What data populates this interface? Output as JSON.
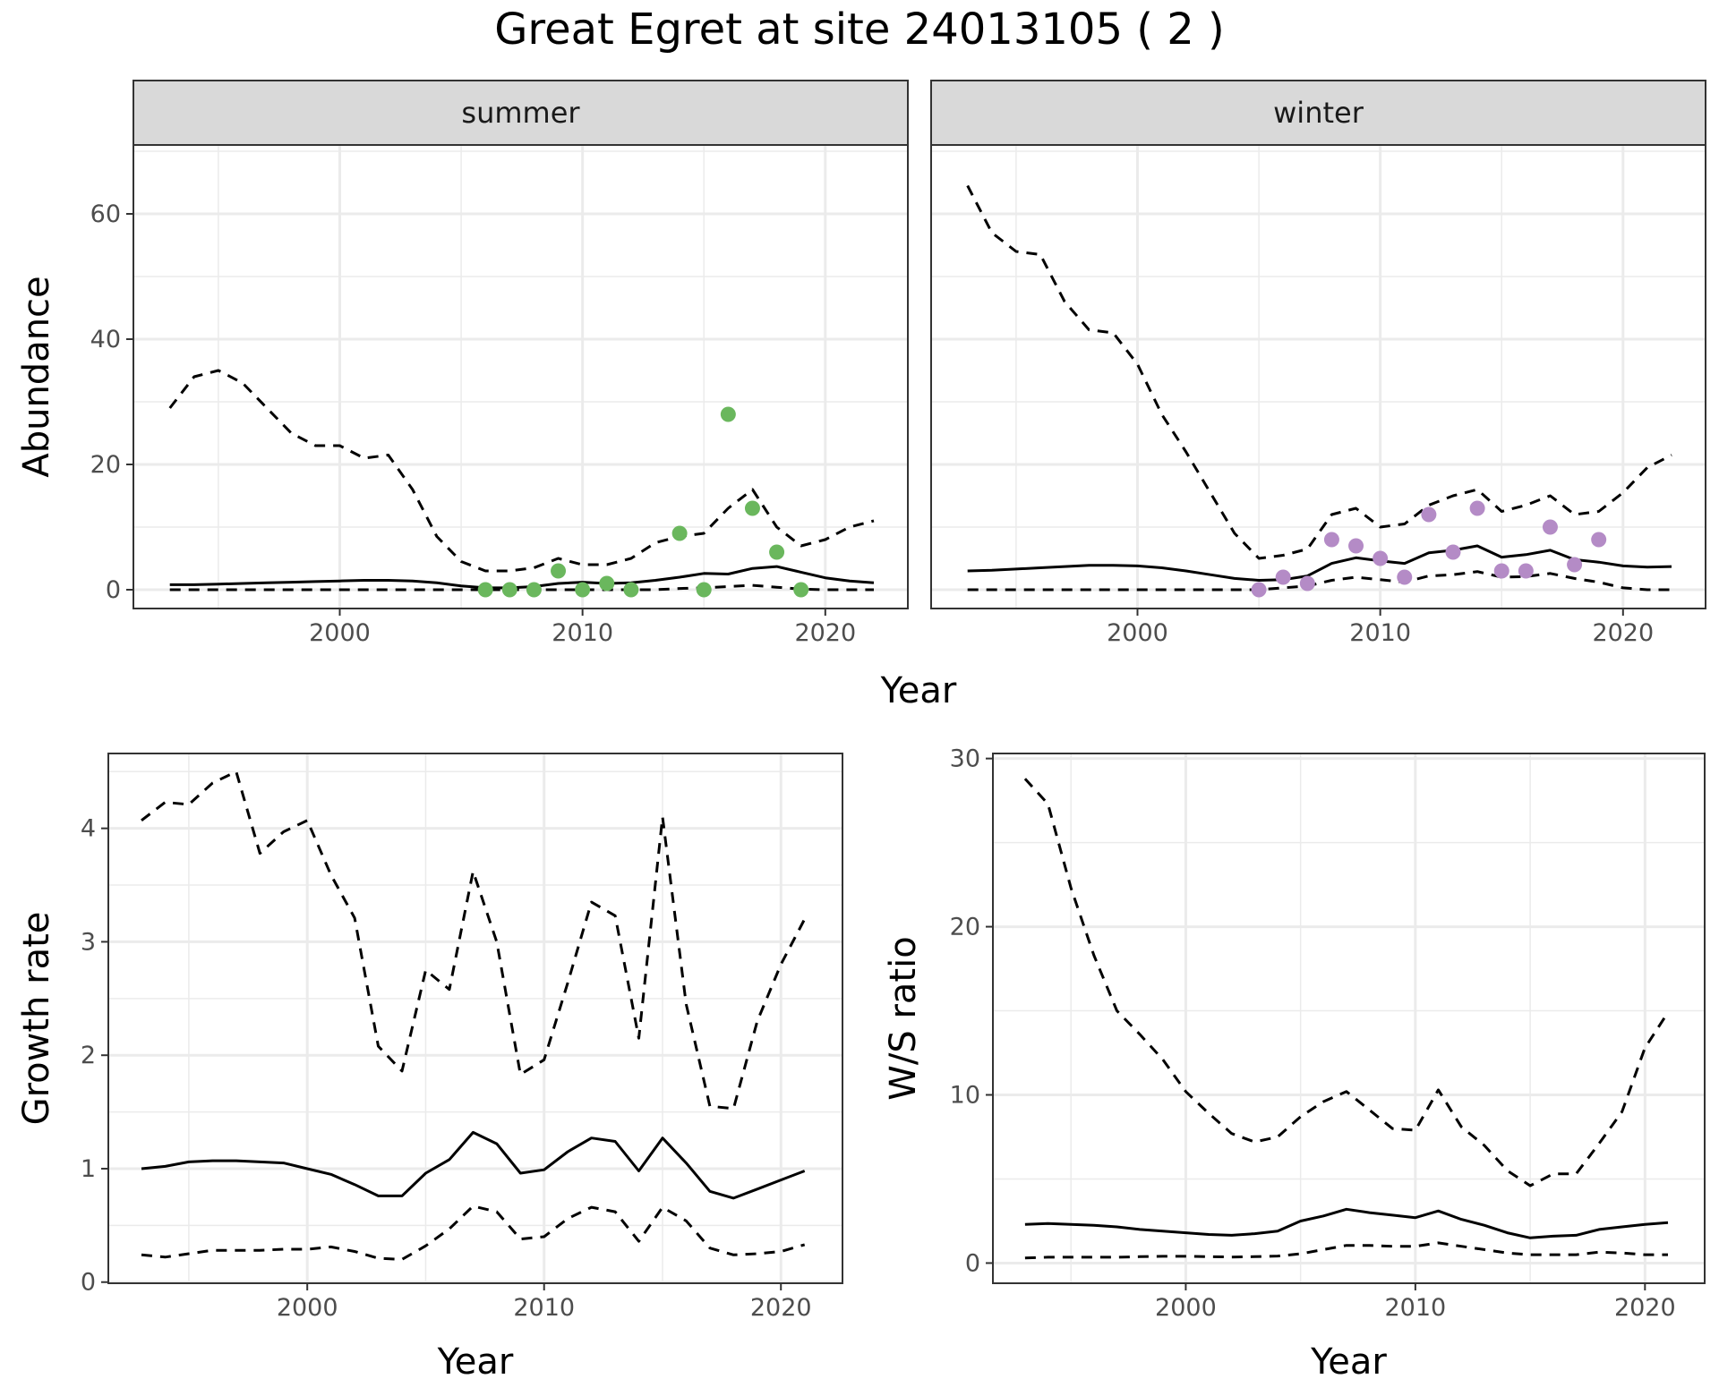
{
  "title": "Great Egret at site 24013105 ( 2 )",
  "colors": {
    "summer_points": "#6ab75d",
    "winter_points": "#b48bc6",
    "lines": "#000000",
    "strip_bg": "#d9d9d9",
    "grid": "#ebebeb"
  },
  "chart_data": [
    {
      "type": "line",
      "facet": "summer",
      "ylabel": "Abundance",
      "xlabel": "Year",
      "xlim": [
        1991.5,
        2023.4
      ],
      "ylim": [
        -3,
        71
      ],
      "xticks": [
        2000,
        2010,
        2020
      ],
      "yticks": [
        0,
        20,
        40,
        60
      ],
      "grid": true,
      "x": [
        1993,
        1994,
        1995,
        1996,
        1997,
        1998,
        1999,
        2000,
        2001,
        2002,
        2003,
        2004,
        2005,
        2006,
        2007,
        2008,
        2009,
        2010,
        2011,
        2012,
        2013,
        2014,
        2015,
        2016,
        2017,
        2018,
        2019,
        2020,
        2021,
        2022
      ],
      "series": [
        {
          "role": "estimate",
          "style": "solid",
          "values": [
            0.8,
            0.8,
            0.9,
            1.0,
            1.1,
            1.2,
            1.3,
            1.4,
            1.5,
            1.5,
            1.4,
            1.1,
            0.6,
            0.3,
            0.3,
            0.5,
            1.0,
            1.2,
            1.0,
            1.1,
            1.5,
            2.0,
            2.6,
            2.5,
            3.4,
            3.7,
            2.8,
            1.9,
            1.4,
            1.1
          ]
        },
        {
          "role": "upper",
          "style": "dashed",
          "values": [
            29,
            34,
            35,
            33,
            29,
            25,
            23,
            23,
            21,
            21.5,
            16,
            8.5,
            4.5,
            3,
            3,
            3.5,
            5,
            4,
            4,
            5,
            7.5,
            8.5,
            9,
            13,
            16,
            10,
            7,
            8,
            10,
            11
          ]
        },
        {
          "role": "lower",
          "style": "dashed",
          "values": [
            0,
            0,
            0,
            0,
            0,
            0,
            0,
            0,
            0,
            0,
            0,
            0,
            0,
            0,
            0,
            0,
            0,
            0,
            0,
            0,
            0,
            0.2,
            0.3,
            0.5,
            0.7,
            0.4,
            0.1,
            0,
            0,
            0
          ]
        }
      ],
      "points": {
        "x": [
          2006,
          2007,
          2008,
          2009,
          2010,
          2011,
          2012,
          2014,
          2015,
          2016,
          2017,
          2018,
          2019
        ],
        "y": [
          0,
          0,
          0,
          3,
          0,
          1,
          0,
          9,
          0,
          28,
          13,
          6,
          0
        ]
      }
    },
    {
      "type": "line",
      "facet": "winter",
      "ylabel": "",
      "xlabel": "Year",
      "xlim": [
        1991.5,
        2023.4
      ],
      "ylim": [
        -3,
        71
      ],
      "xticks": [
        2000,
        2010,
        2020
      ],
      "yticks": [
        0,
        20,
        40,
        60
      ],
      "grid": true,
      "x": [
        1993,
        1994,
        1995,
        1996,
        1997,
        1998,
        1999,
        2000,
        2001,
        2002,
        2003,
        2004,
        2005,
        2006,
        2007,
        2008,
        2009,
        2010,
        2011,
        2012,
        2013,
        2014,
        2015,
        2016,
        2017,
        2018,
        2019,
        2020,
        2021,
        2022
      ],
      "series": [
        {
          "role": "estimate",
          "style": "solid",
          "values": [
            3.0,
            3.1,
            3.3,
            3.5,
            3.7,
            3.9,
            3.9,
            3.8,
            3.5,
            3.0,
            2.4,
            1.8,
            1.5,
            1.6,
            2.2,
            4.2,
            5.1,
            4.6,
            4.2,
            5.9,
            6.3,
            7.0,
            5.2,
            5.6,
            6.3,
            4.8,
            4.4,
            3.8,
            3.6,
            3.7
          ]
        },
        {
          "role": "upper",
          "style": "dashed",
          "values": [
            64.5,
            57,
            54,
            53.5,
            46,
            41.5,
            41,
            36,
            28,
            22,
            15.5,
            9,
            5,
            5.5,
            6.5,
            12,
            13,
            10,
            10.5,
            13.5,
            15,
            16,
            12.5,
            13.5,
            15,
            12,
            12.5,
            15.5,
            19.5,
            21.5
          ]
        },
        {
          "role": "lower",
          "style": "dashed",
          "values": [
            0,
            0,
            0,
            0,
            0,
            0,
            0,
            0,
            0,
            0,
            0,
            0,
            0,
            0.3,
            0.6,
            1.5,
            2.0,
            1.6,
            1.2,
            2.2,
            2.4,
            2.9,
            2.0,
            2.1,
            2.6,
            1.8,
            1.2,
            0.3,
            0,
            0
          ]
        }
      ],
      "points": {
        "x": [
          2005,
          2006,
          2007,
          2008,
          2009,
          2010,
          2011,
          2012,
          2013,
          2014,
          2015,
          2016,
          2017,
          2018,
          2019
        ],
        "y": [
          0,
          2,
          1,
          8,
          7,
          5,
          2,
          12,
          6,
          13,
          3,
          3,
          10,
          4,
          8
        ]
      }
    },
    {
      "type": "line",
      "panel": "growth",
      "ylabel": "Growth rate",
      "xlabel": "Year",
      "xlim": [
        1991.6,
        2022.6
      ],
      "ylim": [
        -0.01,
        4.66
      ],
      "xticks": [
        2000,
        2010,
        2020
      ],
      "yticks": [
        0,
        1,
        2,
        3,
        4
      ],
      "grid": true,
      "x": [
        1993,
        1994,
        1995,
        1996,
        1997,
        1998,
        1999,
        2000,
        2001,
        2002,
        2003,
        2004,
        2005,
        2006,
        2007,
        2008,
        2009,
        2010,
        2011,
        2012,
        2013,
        2014,
        2015,
        2016,
        2017,
        2018,
        2019,
        2020,
        2021
      ],
      "series": [
        {
          "role": "estimate",
          "style": "solid",
          "values": [
            1.0,
            1.02,
            1.06,
            1.07,
            1.07,
            1.06,
            1.05,
            1.0,
            0.95,
            0.86,
            0.76,
            0.76,
            0.96,
            1.08,
            1.32,
            1.22,
            0.96,
            0.99,
            1.15,
            1.27,
            1.24,
            0.98,
            1.27,
            1.05,
            0.8,
            0.74,
            0.82,
            0.9,
            0.98
          ]
        },
        {
          "role": "upper",
          "style": "dashed",
          "values": [
            4.07,
            4.23,
            4.21,
            4.4,
            4.5,
            3.78,
            3.97,
            4.07,
            3.59,
            3.21,
            2.08,
            1.86,
            2.75,
            2.58,
            3.62,
            3.0,
            1.83,
            1.96,
            2.64,
            3.35,
            3.23,
            2.15,
            4.1,
            2.45,
            1.55,
            1.53,
            2.3,
            2.8,
            3.2
          ]
        },
        {
          "role": "lower",
          "style": "dashed",
          "values": [
            0.24,
            0.22,
            0.25,
            0.28,
            0.28,
            0.28,
            0.29,
            0.29,
            0.31,
            0.27,
            0.21,
            0.2,
            0.32,
            0.47,
            0.67,
            0.62,
            0.38,
            0.4,
            0.56,
            0.66,
            0.62,
            0.36,
            0.66,
            0.54,
            0.3,
            0.24,
            0.25,
            0.27,
            0.33
          ]
        }
      ]
    },
    {
      "type": "line",
      "panel": "ws_ratio",
      "ylabel": "W/S ratio",
      "xlabel": "Year",
      "xlim": [
        1991.6,
        2022.6
      ],
      "ylim": [
        -1.2,
        30.3
      ],
      "xticks": [
        2000,
        2010,
        2020
      ],
      "yticks": [
        0,
        10,
        20,
        30
      ],
      "grid": true,
      "x": [
        1993,
        1994,
        1995,
        1996,
        1997,
        1998,
        1999,
        2000,
        2001,
        2002,
        2003,
        2004,
        2005,
        2006,
        2007,
        2008,
        2009,
        2010,
        2011,
        2012,
        2013,
        2014,
        2015,
        2016,
        2017,
        2018,
        2019,
        2020,
        2021
      ],
      "series": [
        {
          "role": "estimate",
          "style": "solid",
          "values": [
            2.3,
            2.35,
            2.3,
            2.25,
            2.15,
            2.0,
            1.9,
            1.8,
            1.7,
            1.65,
            1.75,
            1.9,
            2.5,
            2.8,
            3.2,
            3.0,
            2.85,
            2.7,
            3.1,
            2.6,
            2.25,
            1.8,
            1.5,
            1.6,
            1.65,
            2.0,
            2.15,
            2.3,
            2.4
          ]
        },
        {
          "role": "upper",
          "style": "dashed",
          "values": [
            28.8,
            27.3,
            22.3,
            18.3,
            15,
            13.6,
            12.1,
            10.2,
            8.9,
            7.7,
            7.2,
            7.5,
            8.7,
            9.6,
            10.2,
            9.1,
            8.0,
            7.9,
            10.3,
            8.1,
            7.0,
            5.5,
            4.6,
            5.3,
            5.3,
            7.1,
            9.0,
            12.8,
            14.9
          ]
        },
        {
          "role": "lower",
          "style": "dashed",
          "values": [
            0.3,
            0.35,
            0.35,
            0.35,
            0.35,
            0.38,
            0.4,
            0.4,
            0.38,
            0.36,
            0.38,
            0.42,
            0.55,
            0.8,
            1.05,
            1.05,
            1.0,
            1.0,
            1.2,
            1.0,
            0.8,
            0.6,
            0.5,
            0.5,
            0.5,
            0.65,
            0.6,
            0.5,
            0.5
          ]
        }
      ]
    }
  ]
}
